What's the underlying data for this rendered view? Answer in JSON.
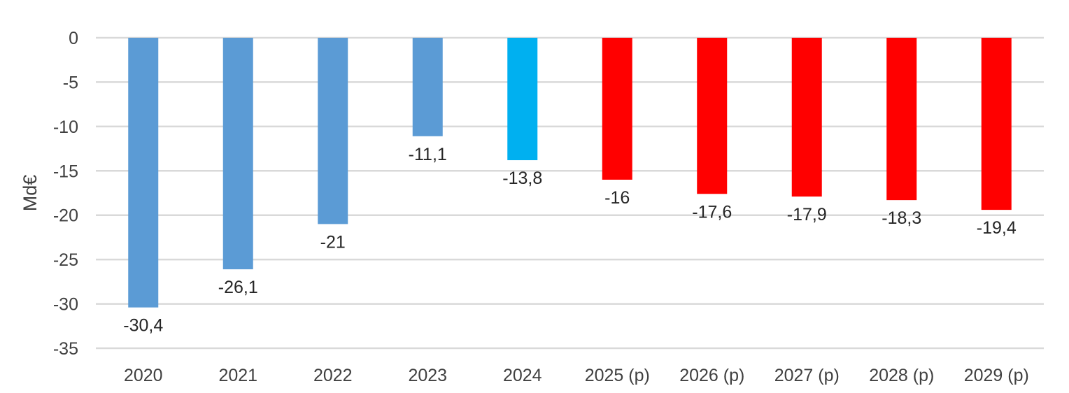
{
  "chart_data": {
    "type": "bar",
    "title": "",
    "xlabel": "",
    "ylabel": "Md€",
    "ylim": [
      -35,
      0
    ],
    "yticks": [
      0,
      -5,
      -10,
      -15,
      -20,
      -25,
      -30,
      -35
    ],
    "ytick_labels": [
      "0",
      "-5",
      "-10",
      "-15",
      "-20",
      "-25",
      "-30",
      "-35"
    ],
    "grid": true,
    "categories": [
      "2020",
      "2021",
      "2022",
      "2023",
      "2024",
      "2025 (p)",
      "2026 (p)",
      "2027 (p)",
      "2028 (p)",
      "2029 (p)"
    ],
    "values": [
      -30.4,
      -26.1,
      -21,
      -11.1,
      -13.8,
      -16,
      -17.6,
      -17.9,
      -18.3,
      -19.4
    ],
    "data_labels": [
      "-30,4",
      "-26,1",
      "-21",
      "-11,1",
      "-13,8",
      "-16",
      "-17,6",
      "-17,9",
      "-18,3",
      "-19,4"
    ],
    "bar_colors": [
      "#5B9BD5",
      "#5B9BD5",
      "#5B9BD5",
      "#5B9BD5",
      "#00B0F0",
      "#FF0000",
      "#FF0000",
      "#FF0000",
      "#FF0000",
      "#FF0000"
    ],
    "grid_color": "#D9D9D9"
  }
}
